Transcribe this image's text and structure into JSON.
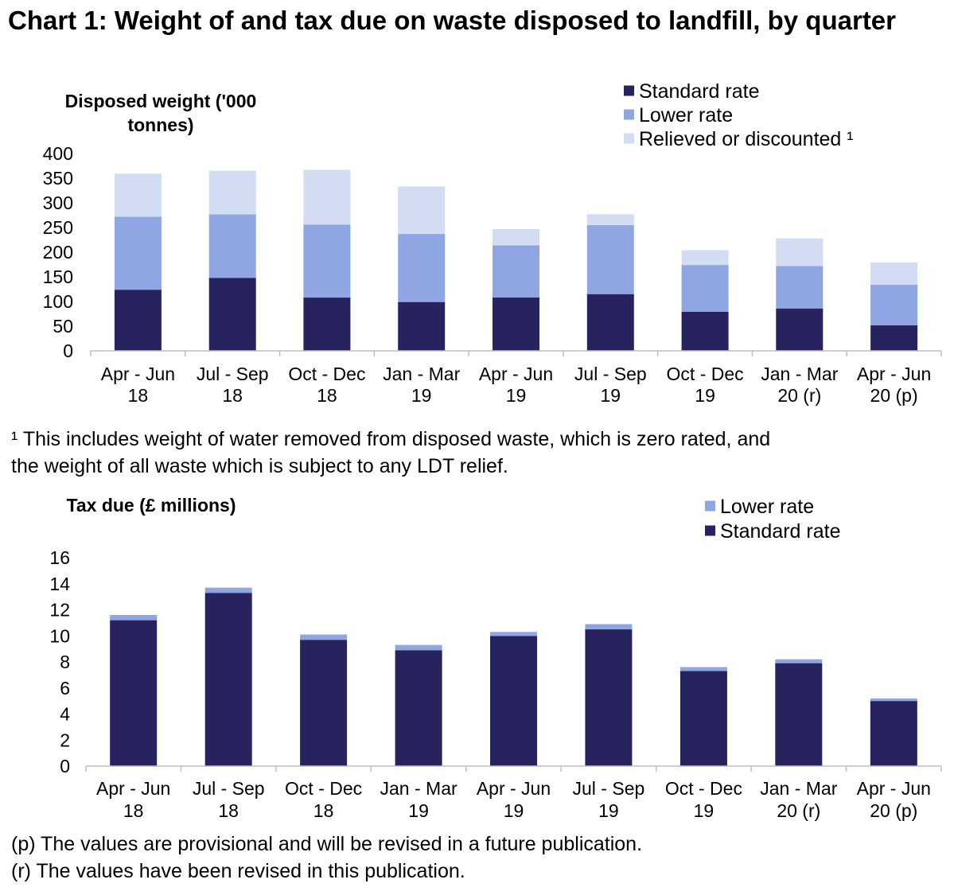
{
  "title": "Chart 1: Weight of and tax due on waste disposed to landfill, by quarter",
  "colors": {
    "standard": "#27235F",
    "lower": "#8FA6E3",
    "relieved": "#D2DCF3",
    "axis": "#BFBFBF"
  },
  "chart_data": [
    {
      "type": "bar",
      "stacked": true,
      "title": "",
      "ylabel": "Disposed weight ('000 tonnes)",
      "ylabel_lines": [
        "Disposed weight ('000",
        "tonnes)"
      ],
      "ylim": [
        0,
        400
      ],
      "yticks": [
        0,
        50,
        100,
        150,
        200,
        250,
        300,
        350,
        400
      ],
      "categories": [
        [
          "Apr - Jun",
          "18"
        ],
        [
          "Jul - Sep",
          "18"
        ],
        [
          "Oct - Dec",
          "18"
        ],
        [
          "Jan - Mar",
          "19"
        ],
        [
          "Apr - Jun",
          "19"
        ],
        [
          "Jul - Sep",
          "19"
        ],
        [
          "Oct - Dec",
          "19"
        ],
        [
          "Jan - Mar",
          "20 (r)"
        ],
        [
          "Apr - Jun",
          "20 (p)"
        ]
      ],
      "series": [
        {
          "name": "Standard rate",
          "color_key": "standard",
          "values": [
            124,
            148,
            108,
            99,
            108,
            115,
            79,
            86,
            52
          ]
        },
        {
          "name": "Lower rate",
          "color_key": "lower",
          "values": [
            148,
            129,
            148,
            138,
            106,
            140,
            95,
            86,
            82
          ]
        },
        {
          "name": "Relieved or discounted ¹",
          "color_key": "relieved",
          "values": [
            87,
            88,
            111,
            96,
            33,
            22,
            30,
            56,
            45
          ]
        }
      ],
      "legend": [
        "Standard rate",
        "Lower rate",
        "Relieved or discounted ¹"
      ],
      "legend_position": "top-right"
    },
    {
      "type": "bar",
      "stacked": true,
      "title": "",
      "ylabel": "Tax due (£ millions)",
      "ylabel_lines": [
        "Tax due (£ millions)"
      ],
      "ylim": [
        0,
        16
      ],
      "yticks": [
        0,
        2,
        4,
        6,
        8,
        10,
        12,
        14,
        16
      ],
      "categories": [
        [
          "Apr - Jun",
          "18"
        ],
        [
          "Jul - Sep",
          "18"
        ],
        [
          "Oct - Dec",
          "18"
        ],
        [
          "Jan - Mar",
          "19"
        ],
        [
          "Apr - Jun",
          "19"
        ],
        [
          "Jul - Sep",
          "19"
        ],
        [
          "Oct - Dec",
          "19"
        ],
        [
          "Jan - Mar",
          "20 (r)"
        ],
        [
          "Apr - Jun",
          "20 (p)"
        ]
      ],
      "series": [
        {
          "name": "Standard rate",
          "color_key": "standard",
          "values": [
            11.2,
            13.3,
            9.7,
            8.9,
            10.0,
            10.5,
            7.3,
            7.9,
            5.0
          ]
        },
        {
          "name": "Lower rate",
          "color_key": "lower",
          "values": [
            0.4,
            0.4,
            0.4,
            0.4,
            0.3,
            0.4,
            0.3,
            0.3,
            0.2
          ]
        }
      ],
      "legend": [
        "Lower rate",
        "Standard rate"
      ],
      "legend_position": "top-right"
    }
  ],
  "footnotes": {
    "relief_line1": "¹ This includes weight of water removed from disposed waste, which is zero rated, and",
    "relief_line2": "the weight of all waste which is subject to any LDT relief.",
    "provisional": "(p) The values are provisional and will be revised in a future publication.",
    "revised": "(r) The values have been revised in this publication."
  }
}
